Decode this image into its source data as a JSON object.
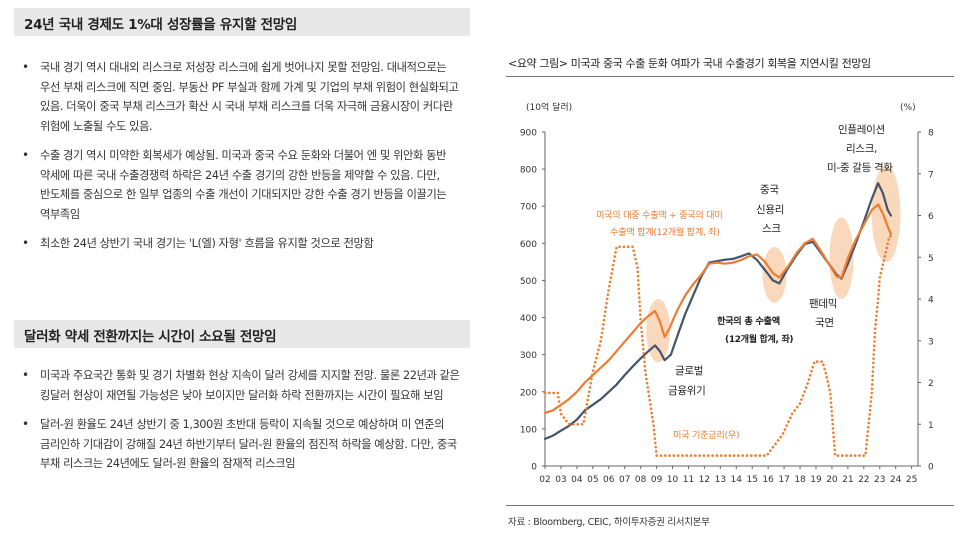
{
  "section1": {
    "title": "24년 국내 경제도 1%대 성장률을 유지할 전망임",
    "bullets": [
      "국내 경기 역시 대내외 리스크로 저성장 리스크에 쉽게 벗어나지 못할 전망임. 대내적으로는 우선 부채 리스크에 직면 중임. 부동산 PF 부실과 함께 가계 및 기업의 부채 위험이 현실화되고 있음. 더욱이 중국 부채 리스크가 확산 시 국내 부채 리스크를 더욱 자극해 금융시장이 커다란 위험에 노출될 수도 있음.",
      "수출 경기 역시 미약한 회복세가 예상됨. 미국과 중국 수요 둔화와 더불어 엔 및 위안화 동반 약세에 따른 국내 수출경쟁력 하락은 24년 수출 경기의 강한 반등을 제약할 수 있음. 다만, 반도체를 중심으로 한 일부 업종의 수출 개선이 기대되지만 강한 수출 경기 반등을 이끌기는 역부족임",
      "최소한 24년 상반기 국내 경기는 'L(엘) 자형' 흐름을 유지할 것으로 전망함"
    ]
  },
  "section2": {
    "title": "달러화 약세 전환까지는 시간이 소요될 전망임",
    "bullets": [
      "미국과 주요국간 통화 및 경기 차별화 현상 지속이 달러 강세를 지지할 전망. 물론 22년과 같은 킹달러 현상이 재연될 가능성은 낮아 보이지만 달러화 하락 전환까지는 시간이 필요해 보임",
      "달러-원 환율도 24년 상반기 중 1,300원 초반대 등락이 지속될 것으로 예상하며 미 연준의 금리인하 기대감이 강해질 24년 하반기부터 달러-원 환율의 점진적 하락을 예상함. 다만, 중국 부채 리스크는 24년에도 달러-원 환율의 잠재적 리스크임"
    ]
  },
  "figure": {
    "title": "<요약 그림> 미국과 중국 수출 둔화 여파가 국내 수출경기 회복을 지연시킬 전망임",
    "source": "자료 : Bloomberg, CEIC, 하이투자증권 리서치본부"
  },
  "colors": {
    "total": "#44546a",
    "us_china": "#ed7d31",
    "rate": "#ed7d31",
    "highlight": "#f8cba6"
  },
  "chart_data": {
    "type": "line",
    "y_left_unit": "(10억 달러)",
    "y_right_unit": "(%)",
    "y_left_ticks": [
      0,
      100,
      200,
      300,
      400,
      500,
      600,
      700,
      800,
      900
    ],
    "y_right_ticks": [
      0,
      1,
      2,
      3,
      4,
      5,
      6,
      7,
      8
    ],
    "ylim": [
      0,
      900
    ],
    "y2lim": [
      0,
      8
    ],
    "xlim": [
      2002,
      2025.4
    ],
    "x_ticks": [
      "02",
      "03",
      "04",
      "05",
      "06",
      "07",
      "08",
      "09",
      "10",
      "11",
      "12",
      "13",
      "14",
      "15",
      "16",
      "17",
      "18",
      "19",
      "20",
      "21",
      "22",
      "23",
      "24",
      "25"
    ],
    "series": [
      {
        "name": "한국의 총 수출액 (12개월 합계, 좌)",
        "axis": "left",
        "style": "solid",
        "points": [
          [
            2002.0,
            73
          ],
          [
            2002.5,
            82
          ],
          [
            2003.0,
            95
          ],
          [
            2003.5,
            108
          ],
          [
            2004.0,
            125
          ],
          [
            2004.5,
            150
          ],
          [
            2005.0,
            165
          ],
          [
            2005.5,
            180
          ],
          [
            2006.0,
            200
          ],
          [
            2006.5,
            220
          ],
          [
            2007.0,
            245
          ],
          [
            2007.5,
            268
          ],
          [
            2008.0,
            290
          ],
          [
            2008.5,
            310
          ],
          [
            2008.9,
            325
          ],
          [
            2009.2,
            310
          ],
          [
            2009.5,
            285
          ],
          [
            2009.9,
            300
          ],
          [
            2010.3,
            350
          ],
          [
            2010.8,
            410
          ],
          [
            2011.3,
            460
          ],
          [
            2011.8,
            510
          ],
          [
            2012.3,
            548
          ],
          [
            2012.8,
            552
          ],
          [
            2013.3,
            556
          ],
          [
            2013.8,
            558
          ],
          [
            2014.3,
            565
          ],
          [
            2014.8,
            573
          ],
          [
            2015.3,
            555
          ],
          [
            2015.8,
            528
          ],
          [
            2016.3,
            500
          ],
          [
            2016.7,
            492
          ],
          [
            2017.2,
            530
          ],
          [
            2017.8,
            570
          ],
          [
            2018.3,
            598
          ],
          [
            2018.8,
            604
          ],
          [
            2019.3,
            575
          ],
          [
            2019.8,
            545
          ],
          [
            2020.3,
            515
          ],
          [
            2020.6,
            505
          ],
          [
            2021.0,
            545
          ],
          [
            2021.5,
            600
          ],
          [
            2022.0,
            658
          ],
          [
            2022.5,
            720
          ],
          [
            2022.9,
            762
          ],
          [
            2023.2,
            735
          ],
          [
            2023.5,
            690
          ],
          [
            2023.7,
            675
          ]
        ]
      },
      {
        "name": "미국의 대중 수출액 + 중국의 대미 수출액 합계(12개월 합계, 좌)",
        "axis": "left",
        "style": "solid",
        "points": [
          [
            2002.0,
            143
          ],
          [
            2002.5,
            150
          ],
          [
            2003.0,
            165
          ],
          [
            2003.5,
            180
          ],
          [
            2004.0,
            200
          ],
          [
            2004.5,
            225
          ],
          [
            2005.0,
            245
          ],
          [
            2005.5,
            265
          ],
          [
            2006.0,
            285
          ],
          [
            2006.5,
            310
          ],
          [
            2007.0,
            335
          ],
          [
            2007.5,
            360
          ],
          [
            2008.0,
            385
          ],
          [
            2008.5,
            405
          ],
          [
            2008.9,
            418
          ],
          [
            2009.2,
            390
          ],
          [
            2009.5,
            348
          ],
          [
            2009.8,
            370
          ],
          [
            2010.3,
            420
          ],
          [
            2010.8,
            460
          ],
          [
            2011.3,
            490
          ],
          [
            2011.8,
            515
          ],
          [
            2012.3,
            545
          ],
          [
            2012.8,
            548
          ],
          [
            2013.3,
            545
          ],
          [
            2013.8,
            548
          ],
          [
            2014.3,
            555
          ],
          [
            2014.8,
            565
          ],
          [
            2015.3,
            570
          ],
          [
            2015.8,
            550
          ],
          [
            2016.3,
            520
          ],
          [
            2016.7,
            508
          ],
          [
            2017.2,
            535
          ],
          [
            2017.8,
            575
          ],
          [
            2018.3,
            600
          ],
          [
            2018.8,
            612
          ],
          [
            2019.3,
            580
          ],
          [
            2019.8,
            545
          ],
          [
            2020.3,
            510
          ],
          [
            2020.6,
            508
          ],
          [
            2021.0,
            560
          ],
          [
            2021.5,
            610
          ],
          [
            2022.0,
            650
          ],
          [
            2022.5,
            690
          ],
          [
            2022.9,
            705
          ],
          [
            2023.2,
            680
          ],
          [
            2023.5,
            645
          ],
          [
            2023.7,
            625
          ]
        ]
      },
      {
        "name": "미국 기준금리(우)",
        "axis": "right",
        "style": "dotted",
        "points": [
          [
            2002.0,
            1.75
          ],
          [
            2002.8,
            1.75
          ],
          [
            2003.0,
            1.25
          ],
          [
            2003.5,
            1.0
          ],
          [
            2004.4,
            1.0
          ],
          [
            2005.0,
            2.25
          ],
          [
            2005.5,
            3.0
          ],
          [
            2006.0,
            4.25
          ],
          [
            2006.5,
            5.25
          ],
          [
            2007.5,
            5.25
          ],
          [
            2007.8,
            4.75
          ],
          [
            2008.0,
            3.5
          ],
          [
            2008.3,
            2.25
          ],
          [
            2008.8,
            1.0
          ],
          [
            2009.0,
            0.25
          ],
          [
            2015.9,
            0.25
          ],
          [
            2016.9,
            0.75
          ],
          [
            2017.5,
            1.25
          ],
          [
            2018.0,
            1.5
          ],
          [
            2018.5,
            2.0
          ],
          [
            2018.9,
            2.5
          ],
          [
            2019.4,
            2.5
          ],
          [
            2019.6,
            2.25
          ],
          [
            2019.9,
            1.75
          ],
          [
            2020.2,
            0.25
          ],
          [
            2022.1,
            0.25
          ],
          [
            2022.3,
            1.0
          ],
          [
            2022.5,
            1.75
          ],
          [
            2022.7,
            3.25
          ],
          [
            2022.9,
            4.0
          ],
          [
            2023.0,
            4.5
          ],
          [
            2023.3,
            5.0
          ],
          [
            2023.6,
            5.5
          ],
          [
            2023.9,
            5.5
          ]
        ]
      }
    ],
    "annotations": [
      {
        "text": "미국의 대중 수출액 + 중국의 대미",
        "target": "us_china"
      },
      {
        "text": "수출액 합계(12개월 합계, 좌)",
        "target": "us_china"
      },
      {
        "text": "한국의 총 수출액",
        "target": "total"
      },
      {
        "text": "(12개월 합계, 좌)",
        "target": "total"
      },
      {
        "text": "미국 기준금리(우)",
        "target": "rate"
      },
      {
        "text": "글로벌",
        "target": "event"
      },
      {
        "text": "금융위기",
        "target": "event"
      },
      {
        "text": "중국",
        "target": "event"
      },
      {
        "text": "신용리",
        "target": "event"
      },
      {
        "text": "스크",
        "target": "event"
      },
      {
        "text": "팬데믹",
        "target": "event"
      },
      {
        "text": "국면",
        "target": "event"
      },
      {
        "text": "인플레이션",
        "target": "event"
      },
      {
        "text": "리스크,",
        "target": "event"
      },
      {
        "text": "미-중 갈등 격화",
        "target": "event"
      }
    ],
    "highlights": [
      {
        "label": "글로벌 금융위기",
        "x_center": 2009.1,
        "y_center": 365,
        "x_halfwidth": 0.75,
        "y_halfwidth": 85
      },
      {
        "label": "중국 신용리스크",
        "x_center": 2016.4,
        "y_center": 515,
        "x_halfwidth": 0.75,
        "y_halfwidth": 75
      },
      {
        "label": "팬데믹 국면",
        "x_center": 2020.6,
        "y_center": 560,
        "x_halfwidth": 0.75,
        "y_halfwidth": 110
      },
      {
        "label": "인플레이션 리스크, 미-중 갈등 격화",
        "x_center": 2023.4,
        "y_center": 680,
        "x_halfwidth": 0.9,
        "y_halfwidth": 130
      }
    ]
  }
}
